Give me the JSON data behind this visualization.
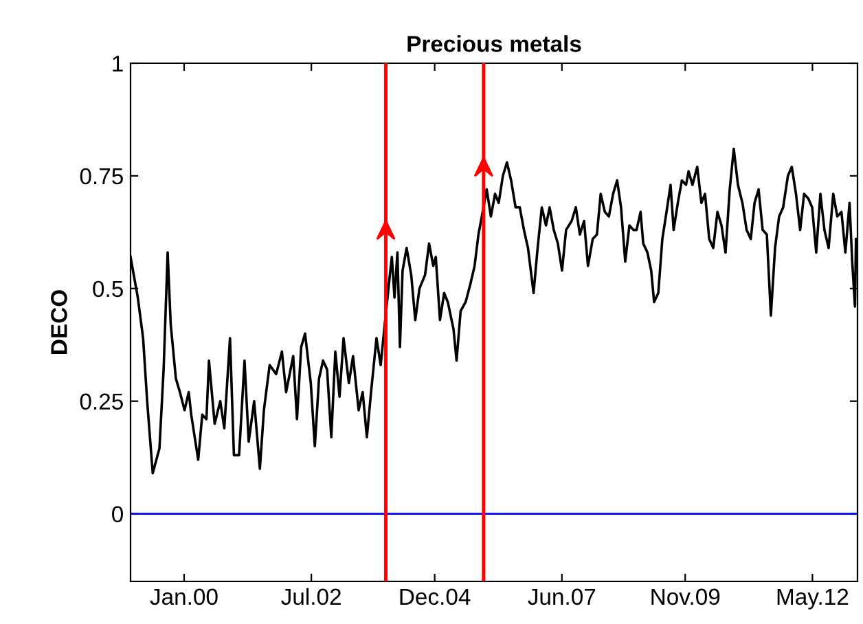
{
  "chart_data": {
    "type": "line",
    "title": "Precious metals",
    "ylabel": "DECO",
    "xlim": [
      "1998-12-13",
      "2013-03-20"
    ],
    "ylim": [
      -0.15,
      1
    ],
    "xticks": [
      {
        "value": "2000-01",
        "label": "Jan.00"
      },
      {
        "value": "2002-07",
        "label": "Jul.02"
      },
      {
        "value": "2004-12",
        "label": "Dec.04"
      },
      {
        "value": "2007-06",
        "label": "Jun.07"
      },
      {
        "value": "2009-11",
        "label": "Nov.09"
      },
      {
        "value": "2012-05",
        "label": "May.12"
      }
    ],
    "yticks": [
      0,
      0.25,
      0.5,
      0.75,
      1
    ],
    "grid": false,
    "legend": false,
    "marker": "none",
    "line_style": "solid",
    "ref_lines": [
      {
        "axis": "y",
        "value": 0,
        "color": "#0000ff"
      },
      {
        "axis": "x",
        "value": "2003-12-17",
        "color": "#ff0000"
      },
      {
        "axis": "x",
        "value": "2005-11-17",
        "color": "#ff0000"
      }
    ],
    "series": [
      {
        "color": "#000000",
        "x": [
          "1998-12-13",
          "1999-02-03",
          "1999-03-13",
          "1999-04-11",
          "1999-05-21",
          "1999-07-08",
          "1999-08-07",
          "1999-09-05",
          "1999-09-27",
          "1999-11-03",
          "1999-12-02",
          "2000-01-04",
          "2000-02-03",
          "2000-02-21",
          "2000-04-11",
          "2000-05-10",
          "2000-06-09",
          "2000-06-27",
          "2000-08-07",
          "2000-09-16",
          "2000-10-15",
          "2000-11-25",
          "2000-12-23",
          "2001-01-29",
          "2001-03-09",
          "2001-04-08",
          "2001-05-17",
          "2001-06-27",
          "2001-07-26",
          "2001-09-05",
          "2001-10-22",
          "2001-12-02",
          "2002-01-01",
          "2002-02-21",
          "2002-03-20",
          "2002-04-19",
          "2002-05-17",
          "2002-06-27",
          "2002-07-26",
          "2002-08-25",
          "2002-09-23",
          "2002-10-22",
          "2002-11-21",
          "2002-12-20",
          "2003-01-19",
          "2003-02-17",
          "2003-03-27",
          "2003-04-26",
          "2003-06-05",
          "2003-07-04",
          "2003-08-03",
          "2003-09-02",
          "2003-10-11",
          "2003-11-10",
          "2003-12-09",
          "2004-01-08",
          "2004-01-29",
          "2004-02-17",
          "2004-03-09",
          "2004-03-27",
          "2004-04-15",
          "2004-05-14",
          "2004-06-16",
          "2004-07-15",
          "2004-08-14",
          "2004-09-23",
          "2004-10-22",
          "2004-11-21",
          "2004-12-09",
          "2005-01-08",
          "2005-02-07",
          "2005-03-05",
          "2005-04-15",
          "2005-05-07",
          "2005-06-05",
          "2005-07-11",
          "2005-08-14",
          "2005-09-13",
          "2005-10-11",
          "2005-11-10",
          "2005-12-09",
          "2006-01-08",
          "2006-02-07",
          "2006-03-05",
          "2006-04-04",
          "2006-05-03",
          "2006-06-02",
          "2006-07-04",
          "2006-08-03",
          "2006-09-02",
          "2006-10-01",
          "2006-11-10",
          "2006-12-09",
          "2007-01-08",
          "2007-02-07",
          "2007-03-05",
          "2007-04-04",
          "2007-05-03",
          "2007-06-02",
          "2007-07-01",
          "2007-08-10",
          "2007-09-09",
          "2007-10-08",
          "2007-11-07",
          "2007-12-05",
          "2008-01-08",
          "2008-02-07",
          "2008-03-05",
          "2008-04-04",
          "2008-05-03",
          "2008-06-02",
          "2008-07-01",
          "2008-07-29",
          "2008-08-28",
          "2008-09-27",
          "2008-10-26",
          "2008-11-17",
          "2008-12-16",
          "2009-01-04",
          "2009-02-03",
          "2009-03-02",
          "2009-03-23",
          "2009-04-22",
          "2009-05-21",
          "2009-06-20",
          "2009-07-19",
          "2009-08-10",
          "2009-09-09",
          "2009-10-08",
          "2009-11-07",
          "2009-11-25",
          "2009-12-23",
          "2010-01-26",
          "2010-02-25",
          "2010-03-23",
          "2010-04-22",
          "2010-05-21",
          "2010-06-20",
          "2010-07-19",
          "2010-08-17",
          "2010-09-16",
          "2010-10-15",
          "2010-11-14",
          "2010-12-16",
          "2011-01-15",
          "2011-02-14",
          "2011-03-13",
          "2011-04-11",
          "2011-05-10",
          "2011-06-09",
          "2011-07-08",
          "2011-08-07",
          "2011-09-05",
          "2011-10-04",
          "2011-11-07",
          "2011-12-05",
          "2012-01-04",
          "2012-02-03",
          "2012-03-02",
          "2012-04-01",
          "2012-04-29",
          "2012-05-28",
          "2012-06-27",
          "2012-07-26",
          "2012-08-25",
          "2012-09-27",
          "2012-10-26",
          "2012-11-25",
          "2012-12-23",
          "2013-01-22",
          "2013-02-10",
          "2013-03-02",
          "2013-03-09"
        ],
        "values": [
          0.57,
          0.48,
          0.39,
          0.25,
          0.09,
          0.145,
          0.32,
          0.58,
          0.42,
          0.3,
          0.27,
          0.23,
          0.27,
          0.22,
          0.12,
          0.22,
          0.21,
          0.34,
          0.2,
          0.25,
          0.19,
          0.39,
          0.13,
          0.13,
          0.34,
          0.16,
          0.25,
          0.1,
          0.23,
          0.33,
          0.31,
          0.36,
          0.27,
          0.35,
          0.21,
          0.37,
          0.4,
          0.29,
          0.15,
          0.3,
          0.34,
          0.32,
          0.17,
          0.36,
          0.26,
          0.39,
          0.29,
          0.35,
          0.23,
          0.27,
          0.17,
          0.27,
          0.39,
          0.33,
          0.42,
          0.51,
          0.57,
          0.48,
          0.58,
          0.37,
          0.54,
          0.59,
          0.53,
          0.43,
          0.5,
          0.53,
          0.6,
          0.55,
          0.57,
          0.43,
          0.49,
          0.47,
          0.41,
          0.34,
          0.45,
          0.47,
          0.51,
          0.55,
          0.62,
          0.67,
          0.72,
          0.66,
          0.71,
          0.69,
          0.75,
          0.78,
          0.74,
          0.68,
          0.68,
          0.63,
          0.59,
          0.49,
          0.59,
          0.68,
          0.64,
          0.68,
          0.63,
          0.6,
          0.54,
          0.63,
          0.65,
          0.68,
          0.62,
          0.65,
          0.55,
          0.61,
          0.62,
          0.71,
          0.67,
          0.66,
          0.71,
          0.74,
          0.68,
          0.56,
          0.64,
          0.63,
          0.63,
          0.67,
          0.6,
          0.58,
          0.54,
          0.47,
          0.49,
          0.61,
          0.67,
          0.73,
          0.63,
          0.69,
          0.74,
          0.73,
          0.76,
          0.73,
          0.77,
          0.69,
          0.71,
          0.61,
          0.59,
          0.67,
          0.64,
          0.58,
          0.72,
          0.81,
          0.73,
          0.69,
          0.63,
          0.61,
          0.69,
          0.72,
          0.63,
          0.62,
          0.44,
          0.59,
          0.66,
          0.68,
          0.75,
          0.77,
          0.71,
          0.63,
          0.71,
          0.7,
          0.68,
          0.58,
          0.71,
          0.63,
          0.59,
          0.71,
          0.66,
          0.67,
          0.58,
          0.69,
          0.56,
          0.46,
          0.61
        ]
      }
    ]
  }
}
